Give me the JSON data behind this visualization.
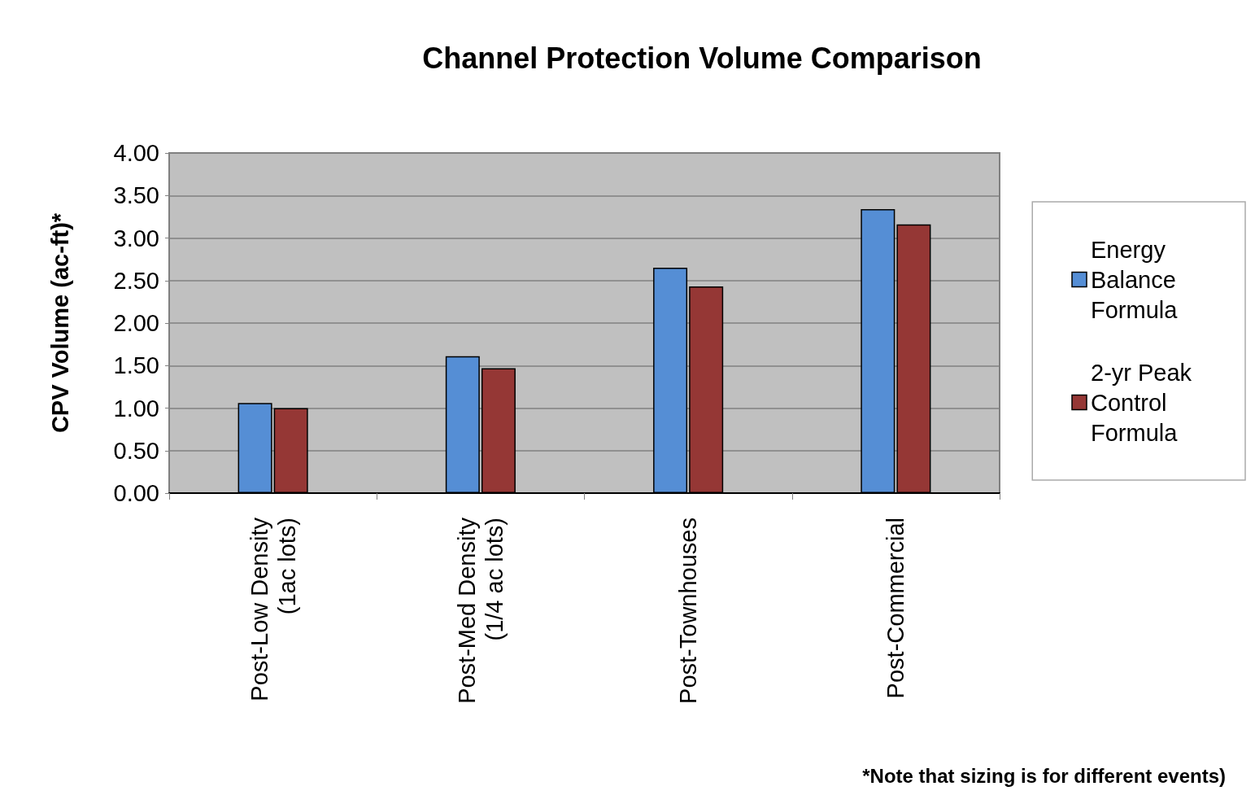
{
  "chart_data": {
    "type": "bar",
    "title": "Channel Protection Volume Comparison",
    "ylabel": "CPV Volume (ac-ft)*",
    "categories": [
      "Post-Low Density (1ac lots)",
      "Post-Med Density (1/4 ac lots)",
      "Post-Townhouses",
      "Post-Commercial"
    ],
    "series": [
      {
        "name": "Energy Balance Formula",
        "color": "#558ed5",
        "values": [
          1.06,
          1.61,
          2.65,
          3.34
        ]
      },
      {
        "name": "2-yr Peak Control Formula",
        "color": "#953735",
        "values": [
          1.0,
          1.47,
          2.43,
          3.16
        ]
      }
    ],
    "ylim": [
      0,
      4
    ],
    "yticks": [
      {
        "value": 0,
        "label": "0.00"
      },
      {
        "value": 0.5,
        "label": "0.50"
      },
      {
        "value": 1,
        "label": "1.00"
      },
      {
        "value": 1.5,
        "label": "1.50"
      },
      {
        "value": 2,
        "label": "2.00"
      },
      {
        "value": 2.5,
        "label": "2.50"
      },
      {
        "value": 3,
        "label": "3.00"
      },
      {
        "value": 3.5,
        "label": "3.50"
      },
      {
        "value": 4,
        "label": "4.00"
      }
    ],
    "grid": true,
    "legend": "right",
    "annotations": [
      "*Note that sizing is for different events)"
    ]
  }
}
